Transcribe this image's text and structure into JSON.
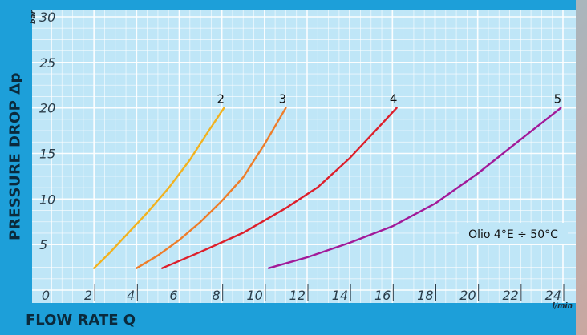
{
  "chart_data": {
    "type": "line",
    "title": "",
    "xlabel": "FLOW RATE Q",
    "ylabel": "PRESSURE DROP Δp",
    "x_unit": "l/min",
    "y_unit": "bar",
    "xlim": [
      0,
      24
    ],
    "ylim": [
      0,
      30
    ],
    "x_ticks": [
      "0",
      "2",
      "4",
      "6",
      "8",
      "10",
      "12",
      "14",
      "16",
      "18",
      "20",
      "22",
      "24"
    ],
    "y_ticks": [
      "5",
      "10",
      "15",
      "20",
      "25",
      "30"
    ],
    "grid": true,
    "annotation": "Olio 4°E ÷ 50°C",
    "series": [
      {
        "name": "2",
        "color": "#f2b21f",
        "x": [
          2.0,
          2.7,
          3.5,
          4.5,
          5.5,
          6.5,
          7.3,
          8.1
        ],
        "y": [
          2.4,
          4.0,
          6.0,
          8.5,
          11.2,
          14.3,
          17.2,
          20.0
        ]
      },
      {
        "name": "3",
        "color": "#ee7d2a",
        "x": [
          4.0,
          5.0,
          6.0,
          7.0,
          8.0,
          9.0,
          10.0,
          11.0
        ],
        "y": [
          2.4,
          3.8,
          5.5,
          7.5,
          9.8,
          12.4,
          16.0,
          20.0
        ]
      },
      {
        "name": "4",
        "color": "#dd1f2b",
        "x": [
          5.2,
          7.0,
          9.0,
          11.0,
          12.5,
          14.0,
          15.0,
          16.2
        ],
        "y": [
          2.4,
          4.2,
          6.3,
          9.0,
          11.3,
          14.5,
          17.0,
          20.0
        ]
      },
      {
        "name": "5",
        "color": "#a21a99",
        "x": [
          10.2,
          12.0,
          14.0,
          16.0,
          18.0,
          20.0,
          22.0,
          23.9
        ],
        "y": [
          2.4,
          3.6,
          5.2,
          7.0,
          9.5,
          12.8,
          16.5,
          20.0
        ]
      }
    ]
  }
}
